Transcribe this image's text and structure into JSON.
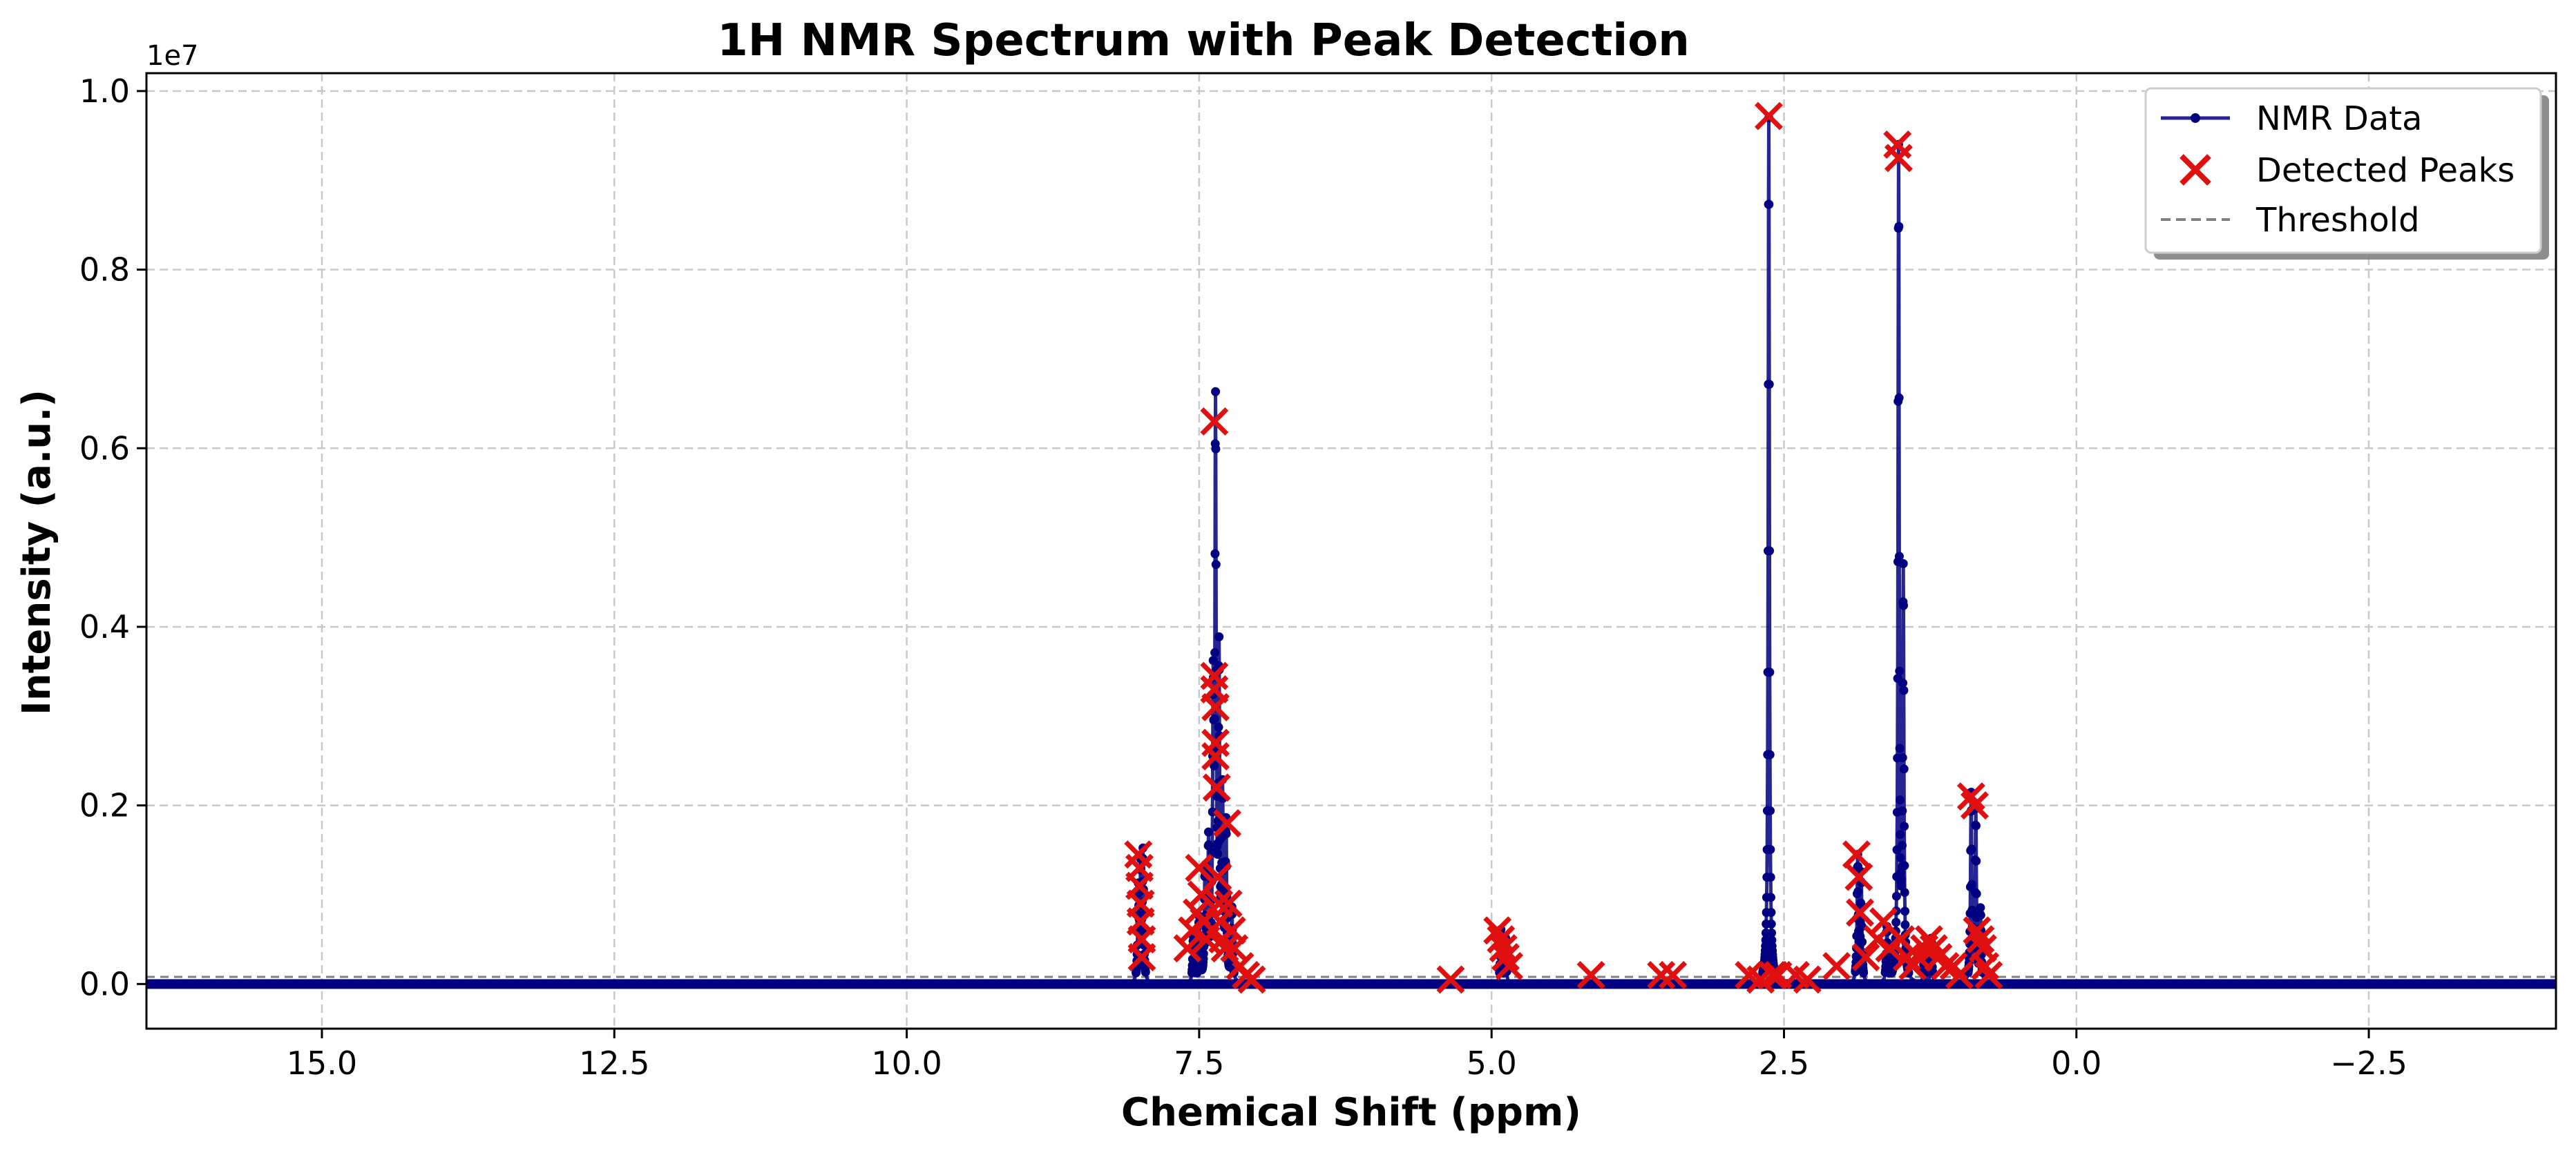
{
  "chart_data": {
    "type": "line",
    "title": "1H NMR Spectrum with Peak Detection",
    "xlabel": "Chemical Shift (ppm)",
    "ylabel": "Intensity (a.u.)",
    "y_scale_label": "1e7",
    "xlim": [
      16.5,
      -4.1
    ],
    "ylim": [
      -0.05,
      1.02
    ],
    "x_inverted": true,
    "grid": true,
    "grid_style": "dashed",
    "legend_position": "top-right",
    "x_ticks": [
      15.0,
      12.5,
      10.0,
      7.5,
      5.0,
      2.5,
      0.0,
      -2.5
    ],
    "x_tick_labels": [
      "15.0",
      "12.5",
      "10.0",
      "7.5",
      "5.0",
      "2.5",
      "0.0",
      "−2.5"
    ],
    "y_ticks": [
      0.0,
      0.2,
      0.4,
      0.6,
      0.8,
      1.0
    ],
    "y_tick_labels": [
      "0.0",
      "0.2",
      "0.4",
      "0.6",
      "0.8",
      "1.0"
    ],
    "colors": {
      "data": "#000080",
      "peaks": "#e01010",
      "threshold": "#808080",
      "grid": "#c8c8c8"
    },
    "series": [
      {
        "name": "NMR Data",
        "kind": "line+markers",
        "peak_groups": [
          {
            "center": 8.02,
            "height": 0.1
          },
          {
            "center": 8.0,
            "height": 0.12
          },
          {
            "center": 7.98,
            "height": 0.14
          },
          {
            "center": 7.55,
            "height": 0.05
          },
          {
            "center": 7.5,
            "height": 0.07
          },
          {
            "center": 7.45,
            "height": 0.12
          },
          {
            "center": 7.42,
            "height": 0.15
          },
          {
            "center": 7.38,
            "height": 0.3
          },
          {
            "center": 7.36,
            "height": 0.62
          },
          {
            "center": 7.33,
            "height": 0.35
          },
          {
            "center": 7.3,
            "height": 0.2
          },
          {
            "center": 7.27,
            "height": 0.17
          },
          {
            "center": 7.22,
            "height": 0.08
          },
          {
            "center": 4.92,
            "height": 0.06
          },
          {
            "center": 4.88,
            "height": 0.05
          },
          {
            "center": 2.63,
            "height": 0.97
          },
          {
            "center": 1.87,
            "height": 0.14
          },
          {
            "center": 1.84,
            "height": 0.12
          },
          {
            "center": 1.62,
            "height": 0.06
          },
          {
            "center": 1.52,
            "height": 0.93
          },
          {
            "center": 1.48,
            "height": 0.45
          },
          {
            "center": 1.3,
            "height": 0.04
          },
          {
            "center": 1.24,
            "height": 0.05
          },
          {
            "center": 0.9,
            "height": 0.21
          },
          {
            "center": 0.86,
            "height": 0.19
          },
          {
            "center": 0.82,
            "height": 0.08
          }
        ]
      },
      {
        "name": "Detected Peaks",
        "kind": "scatter-x",
        "points": [
          [
            8.02,
            0.145
          ],
          [
            8.01,
            0.13
          ],
          [
            8.01,
            0.11
          ],
          [
            8.0,
            0.09
          ],
          [
            8.0,
            0.07
          ],
          [
            7.99,
            0.05
          ],
          [
            7.99,
            0.03
          ],
          [
            7.6,
            0.04
          ],
          [
            7.56,
            0.06
          ],
          [
            7.52,
            0.08
          ],
          [
            7.5,
            0.13
          ],
          [
            7.48,
            0.1
          ],
          [
            7.46,
            0.07
          ],
          [
            7.44,
            0.05
          ],
          [
            7.37,
            0.63
          ],
          [
            7.37,
            0.345
          ],
          [
            7.37,
            0.33
          ],
          [
            7.36,
            0.31
          ],
          [
            7.36,
            0.27
          ],
          [
            7.36,
            0.255
          ],
          [
            7.35,
            0.22
          ],
          [
            7.34,
            0.12
          ],
          [
            7.33,
            0.09
          ],
          [
            7.32,
            0.07
          ],
          [
            7.3,
            0.05
          ],
          [
            7.28,
            0.04
          ],
          [
            7.26,
            0.18
          ],
          [
            7.25,
            0.09
          ],
          [
            7.22,
            0.06
          ],
          [
            7.2,
            0.04
          ],
          [
            7.15,
            0.02
          ],
          [
            7.1,
            0.01
          ],
          [
            7.05,
            0.005
          ],
          [
            5.35,
            0.005
          ],
          [
            4.95,
            0.06
          ],
          [
            4.92,
            0.05
          ],
          [
            4.9,
            0.04
          ],
          [
            4.88,
            0.03
          ],
          [
            4.85,
            0.02
          ],
          [
            4.15,
            0.01
          ],
          [
            3.55,
            0.01
          ],
          [
            3.45,
            0.01
          ],
          [
            2.8,
            0.01
          ],
          [
            2.7,
            0.005
          ],
          [
            2.63,
            0.972
          ],
          [
            2.6,
            0.01
          ],
          [
            2.55,
            0.01
          ],
          [
            2.4,
            0.01
          ],
          [
            2.3,
            0.005
          ],
          [
            2.05,
            0.02
          ],
          [
            1.88,
            0.145
          ],
          [
            1.86,
            0.12
          ],
          [
            1.85,
            0.08
          ],
          [
            1.8,
            0.03
          ],
          [
            1.7,
            0.05
          ],
          [
            1.65,
            0.07
          ],
          [
            1.6,
            0.04
          ],
          [
            1.53,
            0.94
          ],
          [
            1.52,
            0.925
          ],
          [
            1.5,
            0.05
          ],
          [
            1.45,
            0.03
          ],
          [
            1.4,
            0.02
          ],
          [
            1.35,
            0.03
          ],
          [
            1.3,
            0.04
          ],
          [
            1.26,
            0.05
          ],
          [
            1.22,
            0.04
          ],
          [
            1.18,
            0.03
          ],
          [
            1.12,
            0.02
          ],
          [
            1.05,
            0.02
          ],
          [
            1.0,
            0.01
          ],
          [
            0.9,
            0.21
          ],
          [
            0.87,
            0.2
          ],
          [
            0.85,
            0.06
          ],
          [
            0.82,
            0.05
          ],
          [
            0.8,
            0.04
          ],
          [
            0.78,
            0.02
          ],
          [
            0.75,
            0.01
          ]
        ]
      },
      {
        "name": "Threshold",
        "kind": "dashed-line",
        "y": 0.008
      }
    ]
  }
}
